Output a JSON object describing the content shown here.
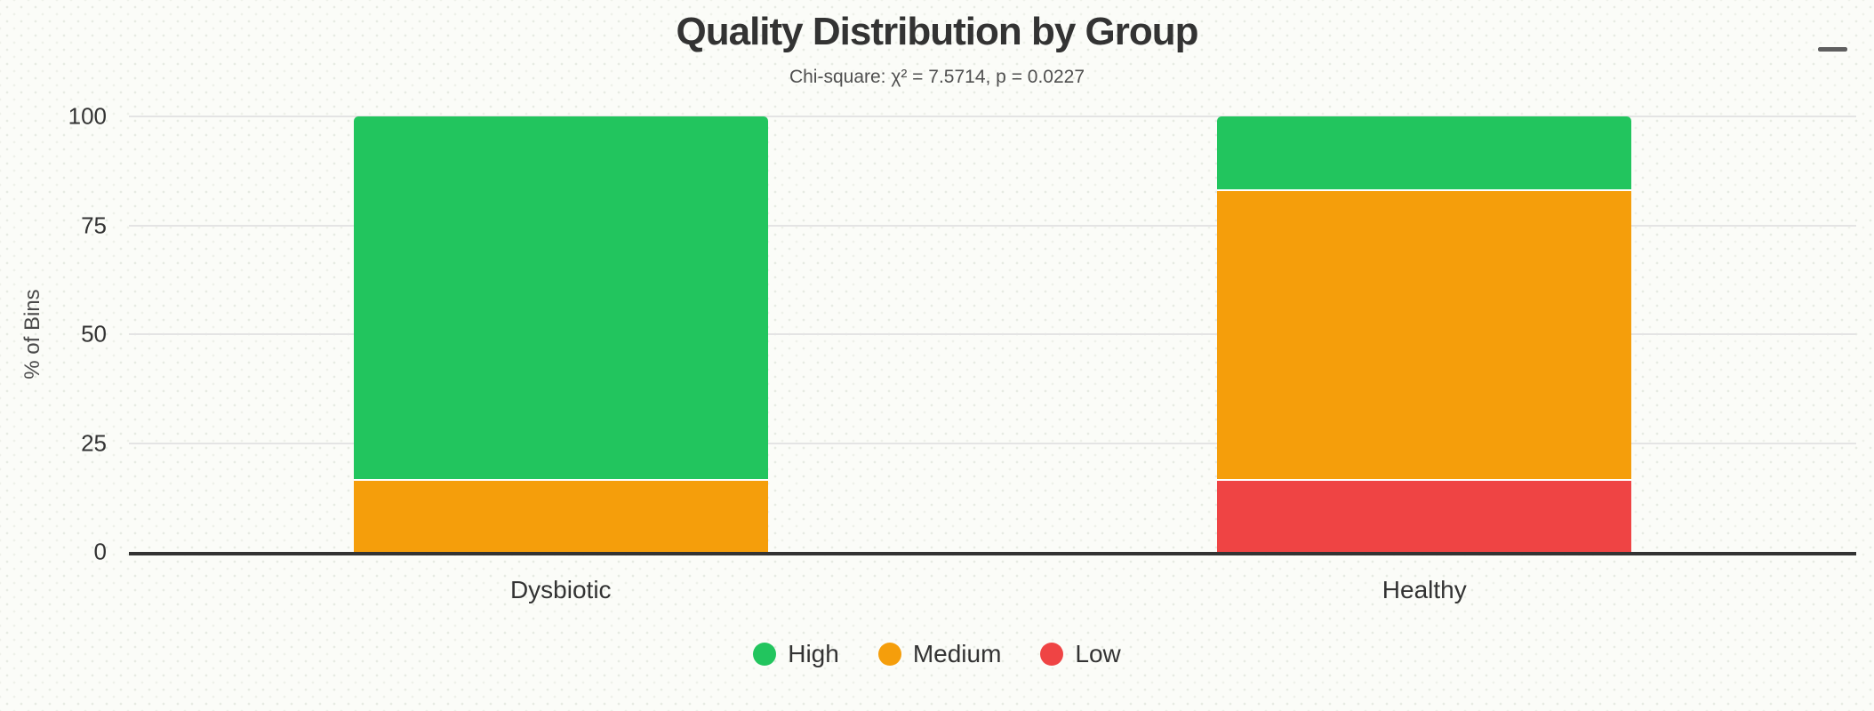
{
  "chart_data": {
    "type": "bar",
    "stacked": true,
    "stacking": "percent",
    "title": "Quality Distribution by Group",
    "subtitle": "Chi-square: χ² = 7.5714, p = 0.0227",
    "xlabel": "",
    "ylabel": "% of Bins",
    "categories": [
      "Dysbiotic",
      "Healthy"
    ],
    "series": [
      {
        "name": "High",
        "color": "#22c55e",
        "values": [
          83.33,
          16.67
        ]
      },
      {
        "name": "Medium",
        "color": "#f59e0b",
        "values": [
          16.67,
          66.67
        ]
      },
      {
        "name": "Low",
        "color": "#ef4444",
        "values": [
          0,
          16.67
        ]
      }
    ],
    "ylim": [
      0,
      100
    ],
    "yticks": [
      0,
      25,
      50,
      75,
      100
    ],
    "grid": true,
    "legend_position": "bottom"
  },
  "menu": {
    "icon": "hamburger-menu-icon"
  },
  "colors": {
    "background": "#fbfcf8",
    "axis_line": "#333333",
    "grid_line": "#e4e4e4",
    "title_text": "#333333",
    "subtitle_text": "#4f4f4f",
    "label_text": "#333333"
  }
}
